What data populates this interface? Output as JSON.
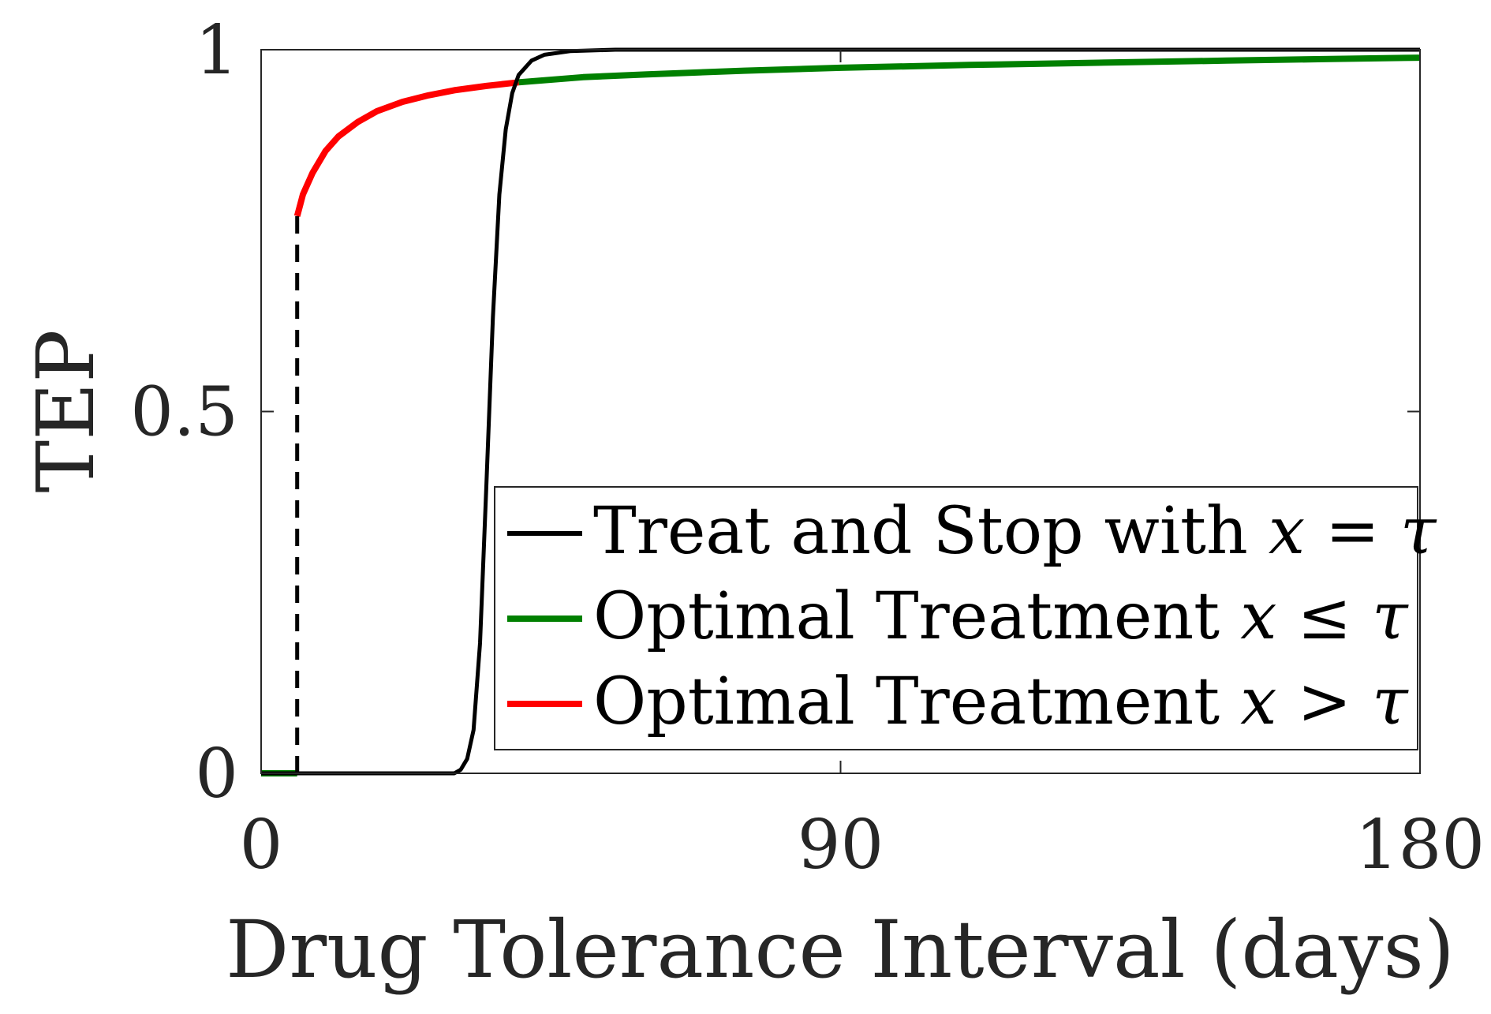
{
  "chart_data": {
    "type": "line",
    "title": "",
    "xlabel": "Drug Tolerance Interval (days)",
    "ylabel": "TEP",
    "xlim": [
      0,
      180
    ],
    "ylim": [
      0,
      1
    ],
    "xticks": [
      0,
      90,
      180
    ],
    "xtick_labels": [
      "0",
      "90",
      "180"
    ],
    "yticks": [
      0,
      0.5,
      1
    ],
    "ytick_labels": [
      "0",
      "0.5",
      "1"
    ],
    "grid": false,
    "legend_position": "bottom-right",
    "series": [
      {
        "name": "Treat and Stop with x = τ",
        "legend_text": "Treat and Stop with ",
        "legend_math": "x = τ",
        "color": "#000000",
        "style": "solid",
        "x": [
          0,
          26,
          30,
          31,
          32,
          33,
          34,
          35,
          36,
          37,
          38,
          39,
          40,
          42,
          44,
          48,
          55,
          70,
          100,
          180
        ],
        "y": [
          0,
          0,
          0,
          0.005,
          0.02,
          0.06,
          0.18,
          0.4,
          0.63,
          0.8,
          0.89,
          0.94,
          0.965,
          0.985,
          0.993,
          0.998,
          1.0,
          1.0,
          1.0,
          1.0
        ]
      },
      {
        "name": "Optimal Treatment x ≤ τ",
        "legend_text": "Optimal Treatment ",
        "legend_math": "x ≤ τ",
        "color": "#008000",
        "style": "solid",
        "segments": [
          {
            "x": [
              0,
              5.6
            ],
            "y": [
              0,
              0
            ]
          },
          {
            "x": [
              40,
              50,
              60,
              75,
              90,
              110,
              130,
              150,
              165,
              180
            ],
            "y": [
              0.955,
              0.962,
              0.966,
              0.971,
              0.975,
              0.979,
              0.982,
              0.985,
              0.987,
              0.989
            ]
          }
        ]
      },
      {
        "name": "Optimal Treatment x > τ",
        "legend_text": "Optimal Treatment ",
        "legend_math": "x > τ",
        "color": "#ff0000",
        "style": "solid",
        "x": [
          5.6,
          6.5,
          8,
          10,
          12,
          15,
          18,
          22,
          26,
          30,
          35,
          40
        ],
        "y": [
          0.77,
          0.8,
          0.83,
          0.86,
          0.88,
          0.9,
          0.915,
          0.928,
          0.937,
          0.944,
          0.95,
          0.955
        ]
      },
      {
        "name": "threshold",
        "color": "#000000",
        "style": "dashed",
        "x": [
          5.6,
          5.6
        ],
        "y": [
          0,
          0.77
        ]
      }
    ]
  }
}
